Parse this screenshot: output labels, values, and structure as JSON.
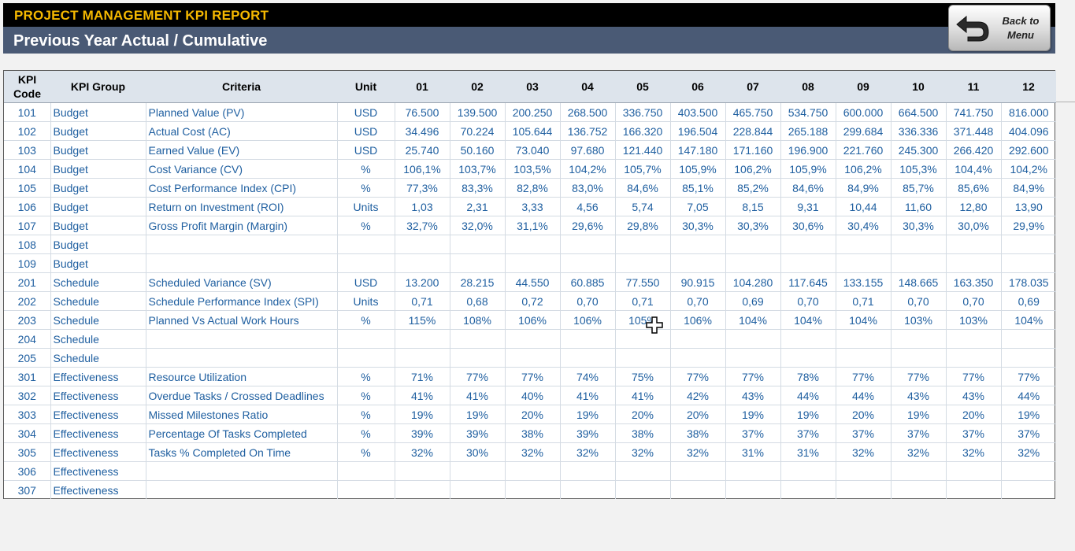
{
  "header": {
    "title": "PROJECT MANAGEMENT KPI REPORT",
    "subtitle": "Previous Year Actual / Cumulative",
    "back_button": {
      "line1": "Back to",
      "line2": "Menu",
      "icon": "back-arrow-icon"
    }
  },
  "colors": {
    "title": "#f5b800",
    "title_bar": "#000000",
    "subtitle_bar": "#4a5a75",
    "header_row": "#dde4ec",
    "cell_text": "#1f5fa0"
  },
  "table": {
    "columns": [
      "KPI Code",
      "KPI Group",
      "Criteria",
      "Unit",
      "01",
      "02",
      "03",
      "04",
      "05",
      "06",
      "07",
      "08",
      "09",
      "10",
      "11",
      "12"
    ],
    "rows": [
      {
        "code": "101",
        "group": "Budget",
        "criteria": "Planned Value (PV)",
        "unit": "USD",
        "values": [
          "76.500",
          "139.500",
          "200.250",
          "268.500",
          "336.750",
          "403.500",
          "465.750",
          "534.750",
          "600.000",
          "664.500",
          "741.750",
          "816.000"
        ]
      },
      {
        "code": "102",
        "group": "Budget",
        "criteria": "Actual Cost (AC)",
        "unit": "USD",
        "values": [
          "34.496",
          "70.224",
          "105.644",
          "136.752",
          "166.320",
          "196.504",
          "228.844",
          "265.188",
          "299.684",
          "336.336",
          "371.448",
          "404.096"
        ]
      },
      {
        "code": "103",
        "group": "Budget",
        "criteria": "Earned Value (EV)",
        "unit": "USD",
        "values": [
          "25.740",
          "50.160",
          "73.040",
          "97.680",
          "121.440",
          "147.180",
          "171.160",
          "196.900",
          "221.760",
          "245.300",
          "266.420",
          "292.600"
        ]
      },
      {
        "code": "104",
        "group": "Budget",
        "criteria": "Cost Variance (CV)",
        "unit": "%",
        "values": [
          "106,1%",
          "103,7%",
          "103,5%",
          "104,2%",
          "105,7%",
          "105,9%",
          "106,2%",
          "105,9%",
          "106,2%",
          "105,3%",
          "104,4%",
          "104,2%"
        ]
      },
      {
        "code": "105",
        "group": "Budget",
        "criteria": "Cost Performance Index (CPI)",
        "unit": "%",
        "values": [
          "77,3%",
          "83,3%",
          "82,8%",
          "83,0%",
          "84,6%",
          "85,1%",
          "85,2%",
          "84,6%",
          "84,9%",
          "85,7%",
          "85,6%",
          "84,9%"
        ]
      },
      {
        "code": "106",
        "group": "Budget",
        "criteria": "Return on Investment (ROI)",
        "unit": "Units",
        "values": [
          "1,03",
          "2,31",
          "3,33",
          "4,56",
          "5,74",
          "7,05",
          "8,15",
          "9,31",
          "10,44",
          "11,60",
          "12,80",
          "13,90"
        ]
      },
      {
        "code": "107",
        "group": "Budget",
        "criteria": "Gross Profit Margin (Margin)",
        "unit": "%",
        "values": [
          "32,7%",
          "32,0%",
          "31,1%",
          "29,6%",
          "29,8%",
          "30,3%",
          "30,3%",
          "30,6%",
          "30,4%",
          "30,3%",
          "30,0%",
          "29,9%"
        ]
      },
      {
        "code": "108",
        "group": "Budget",
        "criteria": "",
        "unit": "",
        "values": [
          "",
          "",
          "",
          "",
          "",
          "",
          "",
          "",
          "",
          "",
          "",
          ""
        ]
      },
      {
        "code": "109",
        "group": "Budget",
        "criteria": "",
        "unit": "",
        "values": [
          "",
          "",
          "",
          "",
          "",
          "",
          "",
          "",
          "",
          "",
          "",
          ""
        ]
      },
      {
        "code": "201",
        "group": "Schedule",
        "criteria": "Scheduled Variance (SV)",
        "unit": "USD",
        "values": [
          "13.200",
          "28.215",
          "44.550",
          "60.885",
          "77.550",
          "90.915",
          "104.280",
          "117.645",
          "133.155",
          "148.665",
          "163.350",
          "178.035"
        ]
      },
      {
        "code": "202",
        "group": "Schedule",
        "criteria": "Schedule Performance Index (SPI)",
        "unit": "Units",
        "values": [
          "0,71",
          "0,68",
          "0,72",
          "0,70",
          "0,71",
          "0,70",
          "0,69",
          "0,70",
          "0,71",
          "0,70",
          "0,70",
          "0,69"
        ]
      },
      {
        "code": "203",
        "group": "Schedule",
        "criteria": "Planned Vs Actual Work Hours",
        "unit": "%",
        "values": [
          "115%",
          "108%",
          "106%",
          "106%",
          "105%",
          "106%",
          "104%",
          "104%",
          "104%",
          "103%",
          "103%",
          "104%"
        ]
      },
      {
        "code": "204",
        "group": "Schedule",
        "criteria": "",
        "unit": "",
        "values": [
          "",
          "",
          "",
          "",
          "",
          "",
          "",
          "",
          "",
          "",
          "",
          ""
        ]
      },
      {
        "code": "205",
        "group": "Schedule",
        "criteria": "",
        "unit": "",
        "values": [
          "",
          "",
          "",
          "",
          "",
          "",
          "",
          "",
          "",
          "",
          "",
          ""
        ]
      },
      {
        "code": "301",
        "group": "Effectiveness",
        "criteria": "Resource Utilization",
        "unit": "%",
        "values": [
          "71%",
          "77%",
          "77%",
          "74%",
          "75%",
          "77%",
          "77%",
          "78%",
          "77%",
          "77%",
          "77%",
          "77%"
        ]
      },
      {
        "code": "302",
        "group": "Effectiveness",
        "criteria": "Overdue Tasks / Crossed Deadlines",
        "unit": "%",
        "values": [
          "41%",
          "41%",
          "40%",
          "41%",
          "41%",
          "42%",
          "43%",
          "44%",
          "44%",
          "43%",
          "43%",
          "44%"
        ]
      },
      {
        "code": "303",
        "group": "Effectiveness",
        "criteria": "Missed Milestones Ratio",
        "unit": "%",
        "values": [
          "19%",
          "19%",
          "20%",
          "19%",
          "20%",
          "20%",
          "19%",
          "19%",
          "20%",
          "19%",
          "20%",
          "19%"
        ]
      },
      {
        "code": "304",
        "group": "Effectiveness",
        "criteria": "Percentage Of Tasks Completed",
        "unit": "%",
        "values": [
          "39%",
          "39%",
          "38%",
          "39%",
          "38%",
          "38%",
          "37%",
          "37%",
          "37%",
          "37%",
          "37%",
          "37%"
        ]
      },
      {
        "code": "305",
        "group": "Effectiveness",
        "criteria": "Tasks % Completed On Time",
        "unit": "%",
        "values": [
          "32%",
          "30%",
          "32%",
          "32%",
          "32%",
          "32%",
          "31%",
          "31%",
          "32%",
          "32%",
          "32%",
          "32%"
        ]
      },
      {
        "code": "306",
        "group": "Effectiveness",
        "criteria": "",
        "unit": "",
        "values": [
          "",
          "",
          "",
          "",
          "",
          "",
          "",
          "",
          "",
          "",
          "",
          ""
        ]
      },
      {
        "code": "307",
        "group": "Effectiveness",
        "criteria": "",
        "unit": "",
        "values": [
          "",
          "",
          "",
          "",
          "",
          "",
          "",
          "",
          "",
          "",
          "",
          ""
        ]
      }
    ]
  }
}
